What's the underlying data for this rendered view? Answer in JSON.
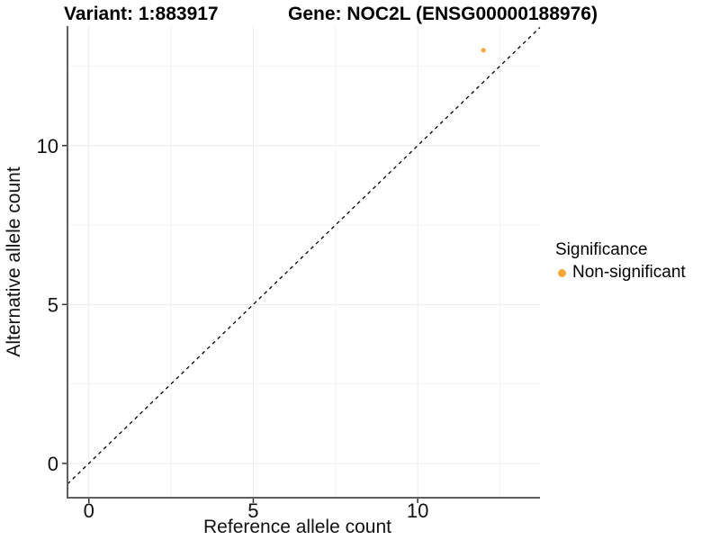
{
  "chart_data": {
    "type": "scatter",
    "title_left": "Variant: 1:883917",
    "title_right": "Gene: NOC2L (ENSG00000188976)",
    "xlabel": "Reference allele count",
    "ylabel": "Alternative allele count",
    "xlim": [
      -0.65,
      13.72
    ],
    "ylim": [
      -1.08,
      13.76
    ],
    "x_ticks": [
      0,
      5,
      10
    ],
    "y_ticks": [
      0,
      5,
      10
    ],
    "x_minor_ticks": [
      2.5,
      7.5,
      12.5
    ],
    "y_minor_ticks": [
      2.5,
      7.5,
      12.5
    ],
    "grid": "major and minor gridlines, very light gray, white panel, axis lines on left and bottom only",
    "identity_line": {
      "slope": 1,
      "intercept": 0,
      "style": "dashed",
      "color": "#000000"
    },
    "series": [
      {
        "name": "Non-significant",
        "color": "#FAA43C",
        "points": [
          {
            "x": 12,
            "y": 13
          }
        ]
      }
    ],
    "legend": {
      "title": "Significance",
      "position": "right",
      "items": [
        {
          "label": "Non-significant",
          "color": "#FAA43C"
        }
      ]
    }
  },
  "colors": {
    "background": "#FFFFFF",
    "axis_line": "#5F5F5F",
    "tick_mark": "#333333",
    "grid_major": "#ECECEC",
    "grid_minor": "#F4F4F4",
    "text": "#111111",
    "point_orange": "#FAA43C"
  }
}
